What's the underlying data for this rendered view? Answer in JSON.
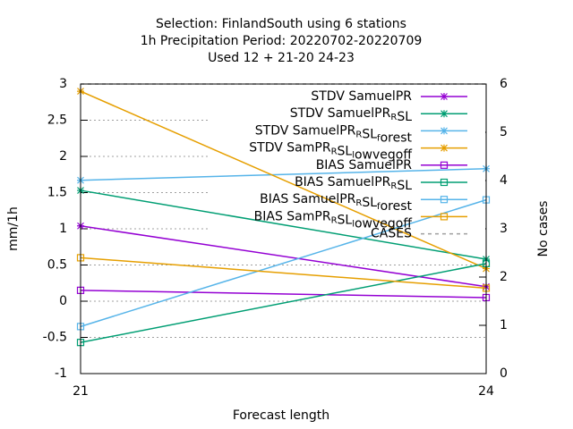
{
  "chart_data": {
    "type": "line",
    "title_lines": [
      "Selection: FinlandSouth using     6 stations",
      "1h Precipitation   Period: 20220702-20220709",
      "Used  12 + 21-20 24-23"
    ],
    "xlabel": "Forecast length",
    "ylabel": "mm/1h",
    "y2label": "No cases",
    "x": [
      21,
      24
    ],
    "xlim": [
      21,
      24
    ],
    "xticks": [
      21,
      24
    ],
    "ylim": [
      -1,
      3
    ],
    "yticks": [
      -1,
      -0.5,
      0,
      0.5,
      1,
      1.5,
      2,
      2.5,
      3
    ],
    "y2lim": [
      0,
      6
    ],
    "y2ticks": [
      0,
      1,
      2,
      3,
      4,
      5,
      6
    ],
    "grid": true,
    "legend": "top-right",
    "series": [
      {
        "name": "STDV SamuelPR",
        "color": "#9400d3",
        "marker": "star",
        "values": [
          1.04,
          0.2
        ]
      },
      {
        "name": "STDV SamuelPR_RSL",
        "color": "#009e73",
        "marker": "star",
        "values": [
          1.53,
          0.58
        ]
      },
      {
        "name": "STDV SamuelPR_RSL_forest",
        "color": "#56b4e9",
        "marker": "star",
        "values": [
          1.67,
          1.83
        ]
      },
      {
        "name": "STDV SamPR_RSL_lowvegoff",
        "color": "#e69f00",
        "marker": "star",
        "values": [
          2.9,
          0.45
        ]
      },
      {
        "name": "BIAS SamuelPR",
        "color": "#9400d3",
        "marker": "square",
        "values": [
          0.15,
          0.05
        ]
      },
      {
        "name": "BIAS SamuelPR_RSL",
        "color": "#009e73",
        "marker": "square",
        "values": [
          -0.57,
          0.52
        ]
      },
      {
        "name": "BIAS SamuelPR_RSL_forest",
        "color": "#56b4e9",
        "marker": "square",
        "values": [
          -0.35,
          1.4
        ]
      },
      {
        "name": "BIAS SamPR_RSL_lowvegoff",
        "color": "#e69f00",
        "marker": "square",
        "values": [
          0.6,
          0.18
        ]
      },
      {
        "name": "CASES",
        "color": "#a0a0a0",
        "marker": "dash",
        "axis": "y2",
        "values": [
          6,
          6
        ]
      }
    ]
  }
}
